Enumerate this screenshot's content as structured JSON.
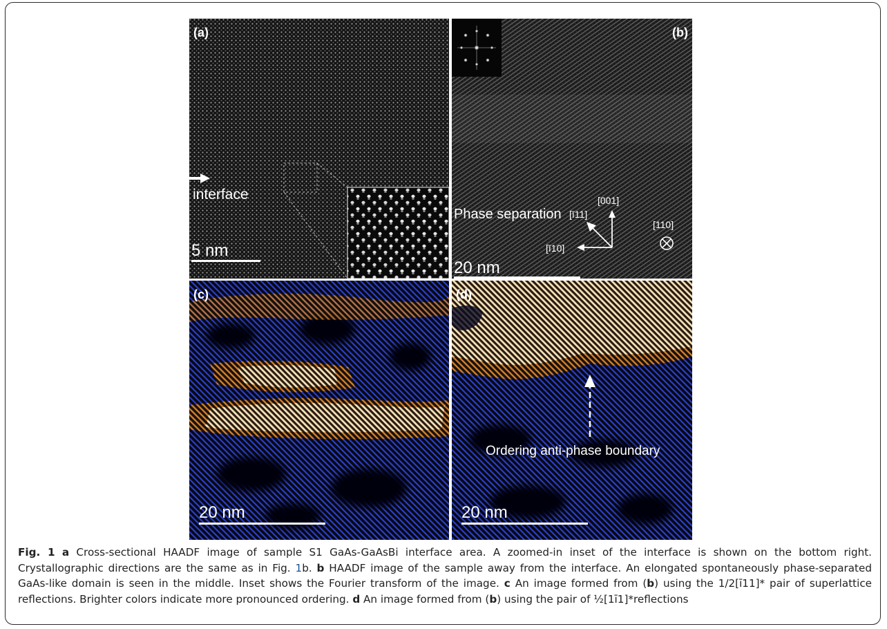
{
  "panels": {
    "a": {
      "label": "(a)",
      "arrow_label": "interface",
      "scale": "5 nm"
    },
    "b": {
      "label": "(b)",
      "annotation": "Phase separation",
      "scale": "20 nm",
      "directions": {
        "d111": "[ī11]",
        "d001": "[001]",
        "d110bar": "[ī10]",
        "d110": "[110]"
      }
    },
    "c": {
      "label": "(c)",
      "scale": "20 nm"
    },
    "d": {
      "label": "(d)",
      "annotation": "Ordering anti-phase boundary",
      "scale": "20 nm"
    }
  },
  "caption": {
    "fig": "Fig. 1",
    "a_key": "a",
    "a_text": " Cross-sectional HAADF image of sample S1 GaAs-GaAsBi interface area. A zoomed-in inset of the interface is shown on the bottom right. Crystallographic directions are the same as in Fig. ",
    "ref_num": "1",
    "ref_suffix": "b. ",
    "b_key": "b",
    "b_text": " HAADF image of the sample away from the interface. An elongated spontaneously phase-separated GaAs-like domain is seen in the middle. Inset shows the Fourier transform of the image. ",
    "c_key": "c",
    "c_text1": " An image formed from (",
    "c_bold": "b",
    "c_text2": ") using the 1/2[ī11]* pair of superlattice reflections. Brighter colors indicate more pronounced ordering. ",
    "d_key": "d",
    "d_text1": " An image formed from (",
    "d_bold": "b",
    "d_text2": ") using the pair of ½[1ī1]*reflections"
  },
  "colors": {
    "ordered": "#f0e0b0",
    "background": "#0a0a18",
    "blue_fringes": "#2840c8",
    "text": "#222222",
    "link": "#1f4e9a"
  }
}
